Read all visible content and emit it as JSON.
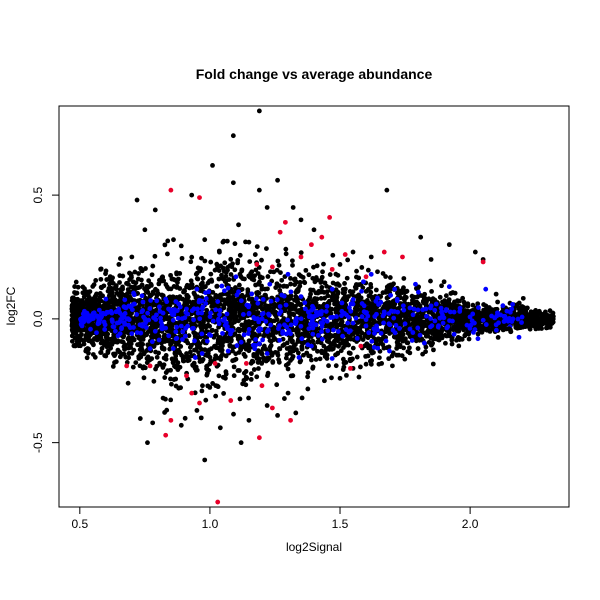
{
  "chart_data": {
    "type": "scatter",
    "title": "Fold change vs average abundance",
    "xlabel": "log2Signal",
    "ylabel": "log2FC",
    "xlim": [
      0.42,
      2.38
    ],
    "ylim": [
      -0.76,
      0.86
    ],
    "x_ticks": [
      0.5,
      1.0,
      1.5,
      2.0
    ],
    "x_tick_labels": [
      "0.5",
      "1.0",
      "1.5",
      "2.0"
    ],
    "y_ticks": [
      -0.5,
      0.0,
      0.5
    ],
    "y_tick_labels": [
      "-0.5",
      "0.0",
      "0.5"
    ],
    "grid": false,
    "legend": "none",
    "colors": {
      "all": "#000000",
      "highlight_blue": "#0000ff",
      "highlight_red": "#e8002a"
    },
    "series": [
      {
        "color": "#000000",
        "points": [
          [
            1.19,
            0.84
          ],
          [
            1.09,
            0.74
          ],
          [
            1.01,
            0.62
          ],
          [
            1.26,
            0.56
          ],
          [
            1.09,
            0.55
          ],
          [
            1.68,
            0.52
          ],
          [
            1.19,
            0.52
          ],
          [
            0.93,
            0.5
          ],
          [
            0.72,
            0.48
          ],
          [
            1.32,
            0.45
          ],
          [
            1.22,
            0.45
          ],
          [
            0.79,
            0.44
          ],
          [
            1.11,
            0.38
          ],
          [
            0.75,
            0.36
          ],
          [
            0.86,
            0.32
          ],
          [
            1.81,
            0.33
          ],
          [
            1.92,
            0.3
          ],
          [
            2.02,
            0.27
          ],
          [
            1.55,
            0.27
          ],
          [
            1.62,
            0.25
          ],
          [
            2.05,
            0.24
          ],
          [
            1.85,
            0.24
          ],
          [
            1.5,
            0.22
          ],
          [
            0.78,
            -0.42
          ],
          [
            0.76,
            -0.5
          ],
          [
            0.98,
            -0.57
          ],
          [
            0.89,
            -0.43
          ],
          [
            1.04,
            -0.44
          ],
          [
            1.12,
            -0.5
          ],
          [
            1.26,
            -0.39
          ],
          [
            1.33,
            -0.38
          ],
          [
            1.44,
            -0.25
          ],
          [
            1.55,
            -0.2
          ],
          [
            1.66,
            -0.18
          ],
          [
            0.95,
            -0.37
          ],
          [
            0.82,
            -0.32
          ],
          [
            1.22,
            -0.35
          ],
          [
            1.5,
            -0.24
          ],
          [
            1.15,
            -0.41
          ],
          [
            0.88,
            -0.28
          ],
          [
            0.53,
            -0.12
          ],
          [
            0.58,
            0.2
          ],
          [
            0.65,
            0.22
          ],
          [
            0.7,
            0.25
          ],
          [
            0.6,
            -0.15
          ],
          [
            1.7,
            -0.15
          ],
          [
            1.8,
            -0.12
          ],
          [
            1.9,
            0.15
          ],
          [
            2.1,
            0.1
          ],
          [
            2.2,
            0.05
          ],
          [
            2.25,
            0.02
          ],
          [
            2.32,
            0.01
          ],
          [
            2.28,
            -0.02
          ],
          [
            2.15,
            -0.04
          ],
          [
            1.35,
            0.4
          ],
          [
            1.4,
            0.36
          ],
          [
            1.05,
            0.31
          ],
          [
            1.15,
            0.31
          ],
          [
            0.98,
            0.32
          ]
        ]
      },
      {
        "color": "#0000ff",
        "points": [
          [
            0.53,
            0.01
          ],
          [
            0.57,
            -0.02
          ],
          [
            0.62,
            0.03
          ],
          [
            0.66,
            -0.04
          ],
          [
            0.71,
            0.06
          ],
          [
            0.75,
            0.0
          ],
          [
            0.79,
            -0.05
          ],
          [
            0.83,
            0.08
          ],
          [
            0.87,
            -0.08
          ],
          [
            0.91,
            0.04
          ],
          [
            0.95,
            0.12
          ],
          [
            0.99,
            -0.09
          ],
          [
            1.03,
            0.07
          ],
          [
            1.07,
            -0.13
          ],
          [
            1.11,
            0.11
          ],
          [
            1.15,
            0.02
          ],
          [
            1.19,
            -0.1
          ],
          [
            1.23,
            0.14
          ],
          [
            1.27,
            0.05
          ],
          [
            1.31,
            -0.06
          ],
          [
            1.35,
            0.09
          ],
          [
            1.39,
            -0.11
          ],
          [
            1.43,
            0.03
          ],
          [
            1.47,
            0.12
          ],
          [
            1.51,
            -0.07
          ],
          [
            1.55,
            0.06
          ],
          [
            1.59,
            0.15
          ],
          [
            1.63,
            -0.04
          ],
          [
            1.67,
            0.02
          ],
          [
            1.71,
            0.12
          ],
          [
            1.75,
            -0.02
          ],
          [
            1.79,
            0.14
          ],
          [
            1.83,
            0.04
          ],
          [
            1.87,
            0.06
          ],
          [
            1.92,
            0.13
          ],
          [
            1.96,
            0.03
          ],
          [
            2.01,
            0.02
          ],
          [
            2.06,
            0.12
          ],
          [
            2.13,
            0.01
          ],
          [
            2.16,
            0.04
          ],
          [
            2.03,
            -0.08
          ],
          [
            1.69,
            -0.13
          ],
          [
            1.47,
            -0.16
          ],
          [
            1.22,
            -0.14
          ],
          [
            0.97,
            -0.14
          ],
          [
            0.77,
            -0.12
          ],
          [
            0.6,
            0.08
          ],
          [
            1.1,
            0.17
          ],
          [
            1.3,
            0.18
          ],
          [
            1.62,
            0.18
          ]
        ]
      },
      {
        "color": "#e8002a",
        "points": [
          [
            1.03,
            -0.74
          ],
          [
            0.85,
            0.52
          ],
          [
            0.96,
            0.49
          ],
          [
            1.46,
            0.41
          ],
          [
            1.29,
            0.39
          ],
          [
            1.43,
            0.33
          ],
          [
            1.39,
            0.3
          ],
          [
            1.27,
            0.35
          ],
          [
            1.67,
            0.27
          ],
          [
            1.74,
            0.25
          ],
          [
            2.05,
            0.23
          ],
          [
            1.47,
            0.2
          ],
          [
            1.24,
            0.21
          ],
          [
            1.6,
            0.17
          ],
          [
            0.91,
            -0.23
          ],
          [
            0.93,
            -0.3
          ],
          [
            0.85,
            -0.41
          ],
          [
            0.83,
            -0.47
          ],
          [
            0.96,
            -0.34
          ],
          [
            1.08,
            -0.33
          ],
          [
            1.19,
            -0.48
          ],
          [
            1.31,
            -0.41
          ],
          [
            1.24,
            -0.36
          ],
          [
            1.2,
            -0.27
          ],
          [
            1.14,
            -0.18
          ],
          [
            1.02,
            -0.18
          ],
          [
            0.77,
            -0.19
          ],
          [
            0.68,
            -0.19
          ],
          [
            1.54,
            -0.2
          ],
          [
            1.58,
            -0.11
          ],
          [
            1.52,
            0.26
          ],
          [
            1.35,
            0.25
          ],
          [
            1.18,
            0.22
          ]
        ]
      }
    ],
    "density_clouds": [
      {
        "color": "#000000",
        "count": 4200,
        "x_range": [
          0.47,
          2.32
        ],
        "y_mean": 0.0,
        "y_sd_profile": [
          [
            0.45,
            0.04
          ],
          [
            0.7,
            0.1
          ],
          [
            0.95,
            0.13
          ],
          [
            1.2,
            0.11
          ],
          [
            1.45,
            0.09
          ],
          [
            1.7,
            0.07
          ],
          [
            1.95,
            0.04
          ],
          [
            2.35,
            0.012
          ]
        ]
      },
      {
        "color": "#0000ff",
        "count": 450,
        "x_range": [
          0.5,
          2.2
        ],
        "y_mean": 0.0,
        "y_sd_profile": [
          [
            0.45,
            0.02
          ],
          [
            1.0,
            0.06
          ],
          [
            1.5,
            0.05
          ],
          [
            2.2,
            0.03
          ]
        ]
      }
    ]
  }
}
